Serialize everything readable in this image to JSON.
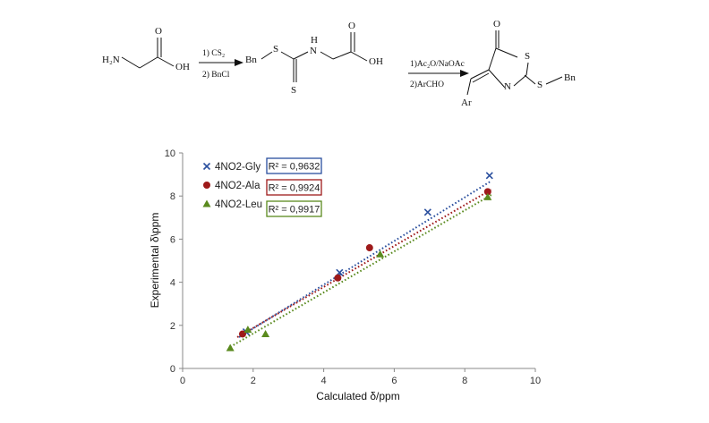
{
  "scheme": {
    "reactant_nh2": "H₂N",
    "reactant_o": "O",
    "reactant_oh": "OH",
    "step1_line1": "1) CS₂",
    "step1_line2": "2) BnCl",
    "inter_bn": "Bn",
    "inter_s1": "S",
    "inter_h": "H",
    "inter_n": "N",
    "inter_s2": "S",
    "inter_o": "O",
    "inter_oh": "OH",
    "step2_line1": "1)Ac₂O/NaOAc",
    "step2_line2": "2)ArCHO",
    "prod_o": "O",
    "prod_s": "S",
    "prod_n": "N",
    "prod_s2": "S",
    "prod_bn": "Bn",
    "prod_ar": "Ar"
  },
  "chart_data": {
    "type": "scatter",
    "xlabel": "Calculated δ/ppm",
    "ylabel": "Experimental δ\\ppm",
    "xlim": [
      0,
      10
    ],
    "ylim": [
      0,
      10
    ],
    "xticks": [
      "0",
      "2",
      "4",
      "6",
      "8",
      "10"
    ],
    "yticks": [
      "0",
      "2",
      "4",
      "6",
      "8",
      "10"
    ],
    "grid": false,
    "legend_position": "top-left",
    "series": [
      {
        "name": "4NO2-Gly",
        "marker": "x",
        "color": "#2a4f9e",
        "r2": "R² = 0,9632",
        "points": [
          [
            1.8,
            1.7
          ],
          [
            4.45,
            4.45
          ],
          [
            6.95,
            7.25
          ],
          [
            8.7,
            8.95
          ]
        ],
        "trend": [
          [
            1.6,
            1.45
          ],
          [
            8.75,
            8.7
          ]
        ]
      },
      {
        "name": "4NO2-Ala",
        "marker": "circle",
        "color": "#9e1a1a",
        "r2": "R² = 0,9924",
        "points": [
          [
            1.7,
            1.6
          ],
          [
            4.4,
            4.2
          ],
          [
            5.3,
            5.6
          ],
          [
            8.65,
            8.2
          ]
        ],
        "trend": [
          [
            1.55,
            1.45
          ],
          [
            8.75,
            8.3
          ]
        ]
      },
      {
        "name": "4NO2-Leu",
        "marker": "triangle",
        "color": "#5a8a1e",
        "r2": "R² = 0,9917",
        "points": [
          [
            1.35,
            0.95
          ],
          [
            1.85,
            1.8
          ],
          [
            2.35,
            1.6
          ],
          [
            5.6,
            5.3
          ],
          [
            8.65,
            7.95
          ]
        ],
        "trend": [
          [
            1.35,
            1.0
          ],
          [
            8.75,
            8.05
          ]
        ]
      }
    ]
  }
}
